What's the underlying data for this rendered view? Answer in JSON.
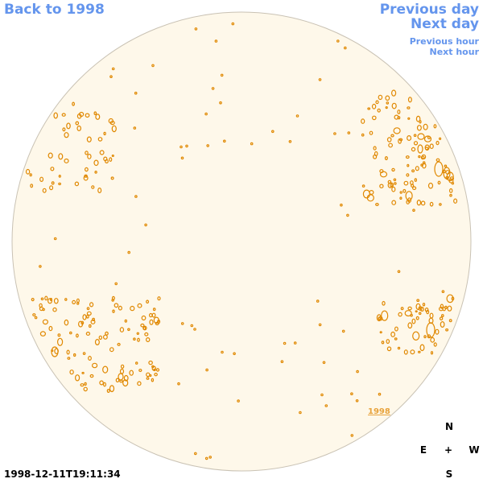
{
  "nav": {
    "back_label": "Back to 1998",
    "previous_day_label": "Previous day",
    "next_day_label": "Next day",
    "previous_hour_label": "Previous hour",
    "next_hour_label": "Next hour"
  },
  "map": {
    "disk_fill": "#fef8ea",
    "disk_border": "#c9c2b4",
    "contour_color": "#e08800",
    "year_label": "1998"
  },
  "compass": {
    "north": "N",
    "east": "E",
    "center": "+",
    "west": "W",
    "south": "S"
  },
  "timestamp": "1998-12-11T19:11:34"
}
